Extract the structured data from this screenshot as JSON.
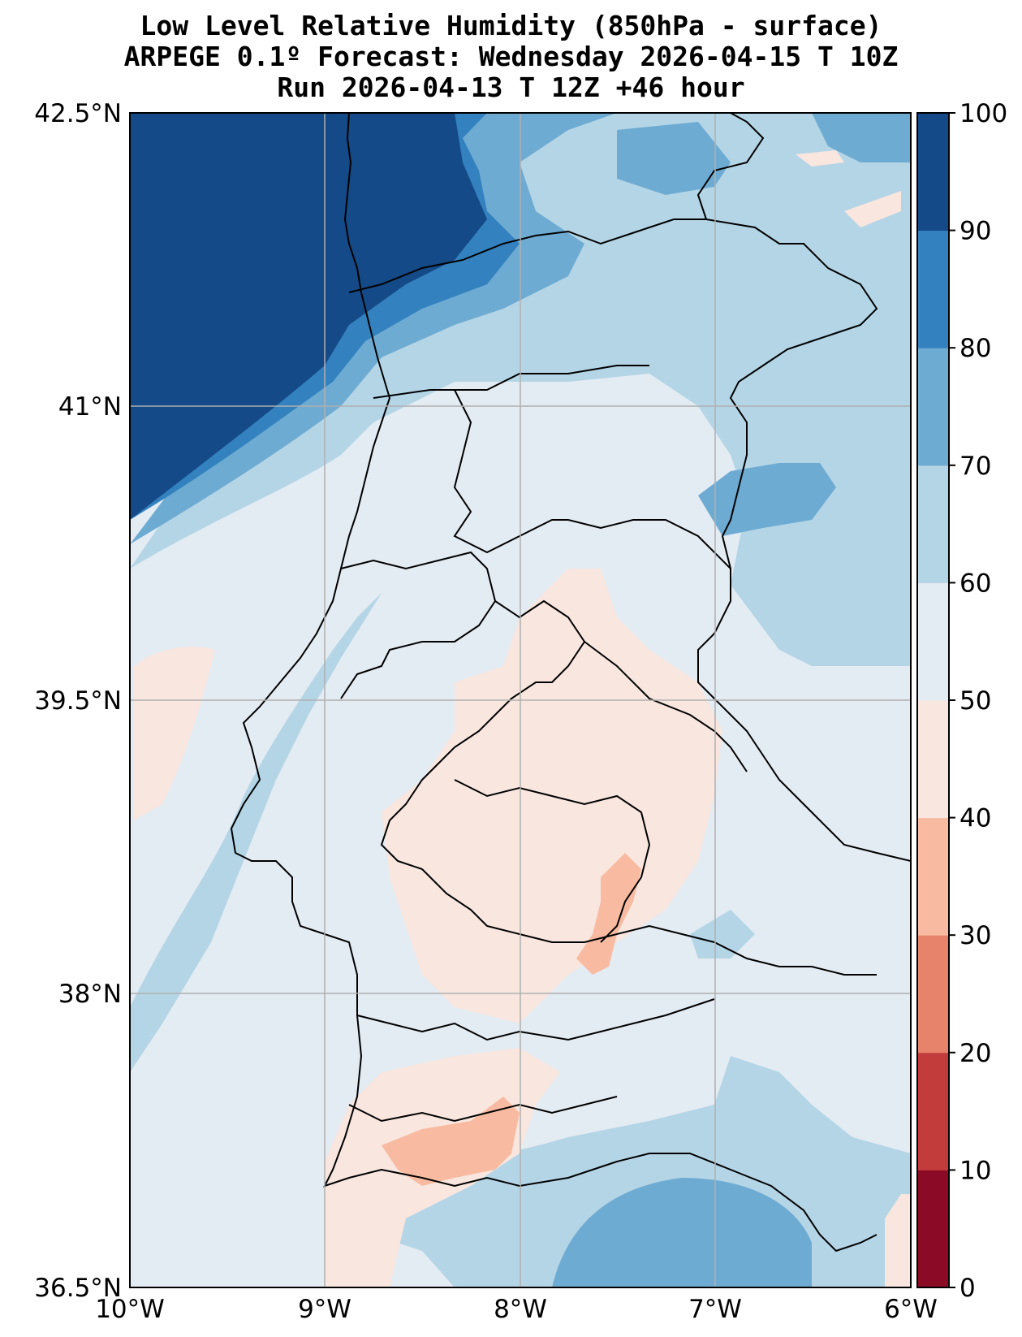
{
  "title": {
    "line1": "Low Level Relative Humidity (850hPa - surface)",
    "line2": "ARPEGE 0.1º Forecast: Wednesday 2026-04-15 T 10Z",
    "line3": "Run 2026-04-13 T 12Z +46 hour"
  },
  "map": {
    "lat_labels": [
      "42.5°N",
      "41°N",
      "39.5°N",
      "38°N",
      "36.5°N"
    ],
    "lon_labels": [
      "10°W",
      "9°W",
      "8°W",
      "7°W",
      "6°W"
    ],
    "lat_range": [
      36.5,
      42.5
    ],
    "lon_range": [
      -10,
      -6
    ],
    "gridlines": true
  },
  "colorbar": {
    "levels": [
      0,
      10,
      20,
      30,
      40,
      50,
      60,
      70,
      80,
      90,
      100
    ],
    "labels": [
      "0",
      "10",
      "20",
      "30",
      "40",
      "50",
      "60",
      "70",
      "80",
      "90",
      "100"
    ],
    "colors": [
      "#8b0a26",
      "#c33c3c",
      "#e6836a",
      "#f8bba1",
      "#f8e6df",
      "#e3ebf3",
      "#b4d5e6",
      "#6eabd2",
      "#3382bf",
      "#144a87"
    ]
  }
}
